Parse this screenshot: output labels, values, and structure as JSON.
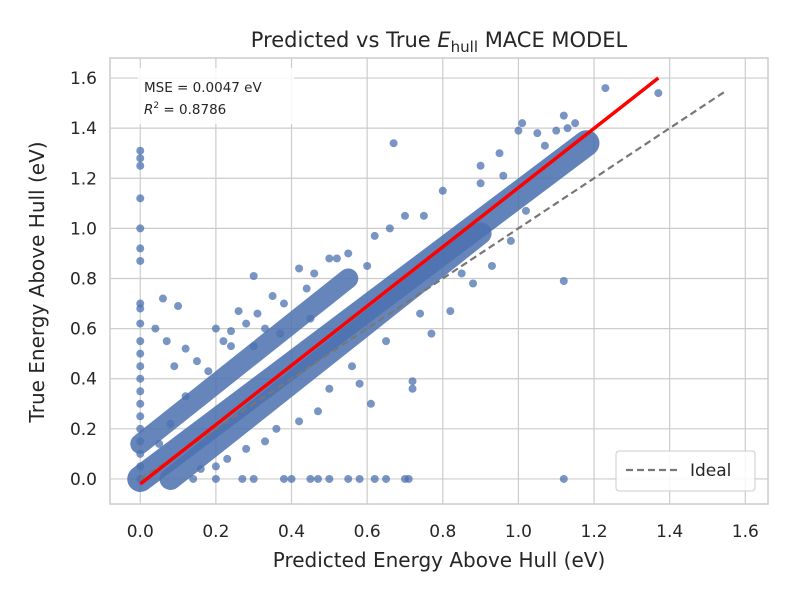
{
  "chart_data": {
    "type": "scatter",
    "title_main": "Predicted vs True ",
    "title_symbol": "E",
    "title_subscript": "hull",
    "title_suffix": " MACE MODEL",
    "xlabel": "Predicted Energy Above Hull (eV)",
    "ylabel": "True Energy Above Hull (eV)",
    "xlim": [
      -0.08,
      1.66
    ],
    "ylim": [
      -0.1,
      1.68
    ],
    "x_ticks": [
      0.0,
      0.2,
      0.4,
      0.6,
      0.8,
      1.0,
      1.2,
      1.4,
      1.6
    ],
    "y_ticks": [
      0.0,
      0.2,
      0.4,
      0.6,
      0.8,
      1.0,
      1.2,
      1.4,
      1.6
    ],
    "x_tick_labels": [
      "0.0",
      "0.2",
      "0.4",
      "0.6",
      "0.8",
      "1.0",
      "1.2",
      "1.4",
      "1.6"
    ],
    "y_tick_labels": [
      "0.0",
      "0.2",
      "0.4",
      "0.6",
      "0.8",
      "1.0",
      "1.2",
      "1.4",
      "1.6"
    ],
    "grid": true,
    "stats": {
      "mse_text": "MSE = 0.0047 eV",
      "r2_symbol": "R",
      "r2_exponent": "2",
      "r2_value": " = 0.8786"
    },
    "fit_line": {
      "x": [
        0.0,
        1.37
      ],
      "y": [
        -0.02,
        1.6
      ]
    },
    "ideal_line": {
      "name": "Ideal",
      "x": [
        0.0,
        1.55
      ],
      "y": [
        0.0,
        1.55
      ]
    },
    "legend": {
      "label": "Ideal",
      "placement": "lower-right"
    },
    "series": [
      {
        "name": "points",
        "points": [
          [
            0.0,
            1.31
          ],
          [
            0.0,
            1.28
          ],
          [
            0.0,
            1.25
          ],
          [
            0.0,
            1.12
          ],
          [
            0.0,
            1.0
          ],
          [
            0.0,
            0.92
          ],
          [
            0.0,
            0.87
          ],
          [
            0.0,
            0.7
          ],
          [
            0.0,
            0.68
          ],
          [
            0.0,
            0.62
          ],
          [
            0.0,
            0.55
          ],
          [
            0.0,
            0.5
          ],
          [
            0.0,
            0.45
          ],
          [
            0.0,
            0.4
          ],
          [
            0.0,
            0.35
          ],
          [
            0.0,
            0.3
          ],
          [
            0.0,
            0.25
          ],
          [
            0.0,
            0.2
          ],
          [
            0.0,
            0.15
          ],
          [
            0.0,
            0.1
          ],
          [
            0.0,
            0.05
          ],
          [
            0.0,
            0.0
          ],
          [
            0.06,
            0.72
          ],
          [
            0.1,
            0.69
          ],
          [
            0.04,
            0.6
          ],
          [
            0.07,
            0.55
          ],
          [
            0.12,
            0.52
          ],
          [
            0.09,
            0.45
          ],
          [
            0.15,
            0.47
          ],
          [
            0.2,
            0.6
          ],
          [
            0.26,
            0.67
          ],
          [
            0.22,
            0.55
          ],
          [
            0.24,
            0.59
          ],
          [
            0.28,
            0.62
          ],
          [
            0.3,
            0.81
          ],
          [
            0.3,
            0.53
          ],
          [
            0.33,
            0.6
          ],
          [
            0.35,
            0.73
          ],
          [
            0.37,
            0.58
          ],
          [
            0.42,
            0.84
          ],
          [
            0.46,
            0.82
          ],
          [
            0.45,
            0.64
          ],
          [
            0.5,
            0.88
          ],
          [
            0.55,
            0.9
          ],
          [
            0.6,
            0.85
          ],
          [
            0.67,
            1.34
          ],
          [
            0.66,
            1.0
          ],
          [
            0.7,
            1.05
          ],
          [
            0.8,
            1.15
          ],
          [
            0.9,
            1.25
          ],
          [
            0.95,
            1.3
          ],
          [
            1.0,
            1.39
          ],
          [
            1.01,
            1.42
          ],
          [
            1.05,
            1.38
          ],
          [
            1.07,
            1.33
          ],
          [
            1.1,
            1.39
          ],
          [
            1.12,
            1.45
          ],
          [
            1.13,
            1.4
          ],
          [
            1.15,
            1.42
          ],
          [
            1.23,
            1.56
          ],
          [
            1.37,
            1.54
          ],
          [
            1.12,
            0.79
          ],
          [
            0.93,
            0.85
          ],
          [
            0.85,
            0.82
          ],
          [
            0.74,
            0.66
          ],
          [
            0.65,
            0.55
          ],
          [
            0.56,
            0.45
          ],
          [
            0.5,
            0.36
          ],
          [
            0.47,
            0.27
          ],
          [
            0.42,
            0.23
          ],
          [
            0.36,
            0.2
          ],
          [
            0.33,
            0.15
          ],
          [
            0.28,
            0.12
          ],
          [
            0.23,
            0.08
          ],
          [
            0.2,
            0.05
          ],
          [
            0.16,
            0.04
          ],
          [
            0.72,
            0.39
          ],
          [
            0.72,
            0.36
          ],
          [
            0.58,
            0.38
          ],
          [
            0.61,
            0.3
          ],
          [
            0.77,
            0.58
          ],
          [
            0.82,
            0.67
          ],
          [
            0.88,
            0.78
          ],
          [
            0.98,
            0.95
          ],
          [
            1.02,
            1.07
          ],
          [
            0.96,
            1.21
          ],
          [
            0.9,
            1.18
          ],
          [
            0.75,
            1.05
          ],
          [
            0.62,
            0.97
          ],
          [
            0.52,
            0.88
          ],
          [
            0.44,
            0.76
          ],
          [
            0.38,
            0.7
          ],
          [
            0.31,
            0.66
          ],
          [
            0.24,
            0.53
          ],
          [
            0.18,
            0.43
          ],
          [
            0.12,
            0.33
          ],
          [
            0.08,
            0.22
          ],
          [
            0.05,
            0.14
          ],
          [
            0.14,
            0.0
          ],
          [
            0.2,
            0.0
          ],
          [
            0.27,
            0.0
          ],
          [
            0.3,
            0.0
          ],
          [
            0.38,
            0.0
          ],
          [
            0.4,
            0.0
          ],
          [
            0.45,
            0.0
          ],
          [
            0.47,
            0.0
          ],
          [
            0.5,
            0.0
          ],
          [
            0.55,
            0.0
          ],
          [
            0.58,
            0.0
          ],
          [
            0.62,
            0.0
          ],
          [
            0.65,
            0.0
          ],
          [
            0.7,
            0.0
          ],
          [
            0.71,
            0.0
          ],
          [
            1.12,
            0.0
          ]
        ]
      }
    ],
    "colors": {
      "points": "#4c72b0",
      "fit_line": "#ff0000",
      "ideal_line": "#777777",
      "grid": "#cccccc",
      "frame": "#cccccc",
      "text": "#262626"
    }
  }
}
